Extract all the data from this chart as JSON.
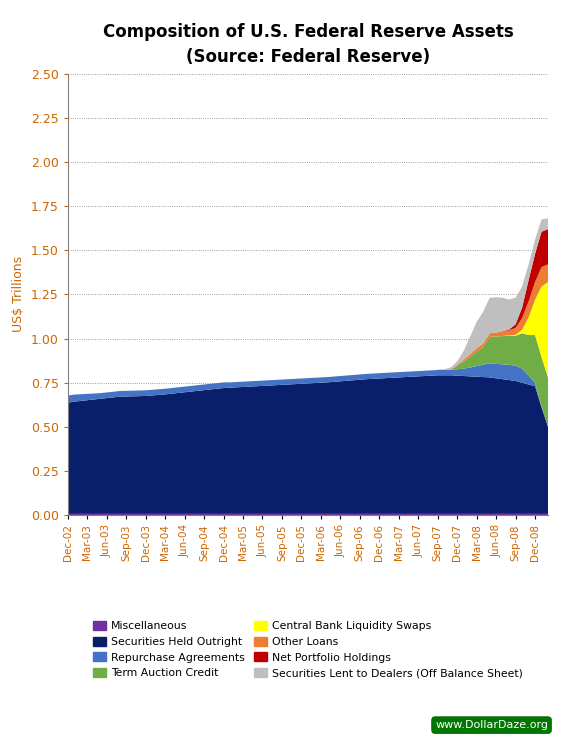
{
  "title": "Composition of U.S. Federal Reserve Assets",
  "subtitle": "(Source: Federal Reserve)",
  "ylabel": "US$ Trillions",
  "ylim": [
    0.0,
    2.5
  ],
  "yticks": [
    0.0,
    0.25,
    0.5,
    0.75,
    1.0,
    1.25,
    1.5,
    1.75,
    2.0,
    2.25,
    2.5
  ],
  "watermark": "www.DollarDaze.org",
  "figsize": [
    5.65,
    7.36
  ],
  "dpi": 100,
  "x_labels": [
    "Dec-02",
    "Mar-03",
    "Jun-03",
    "Sep-03",
    "Dec-03",
    "Mar-04",
    "Jun-04",
    "Sep-04",
    "Dec-04",
    "Mar-05",
    "Jun-05",
    "Sep-05",
    "Dec-05",
    "Mar-06",
    "Jun-06",
    "Sep-06",
    "Dec-06",
    "Mar-07",
    "Jun-07",
    "Sep-07",
    "Dec-07",
    "Mar-08",
    "Jun-08",
    "Sep-08",
    "Dec-08"
  ],
  "series": {
    "Miscellaneous": {
      "color": "#7030A0",
      "values": [
        0.01,
        0.01,
        0.01,
        0.01,
        0.01,
        0.01,
        0.01,
        0.01,
        0.01,
        0.01,
        0.01,
        0.01,
        0.01,
        0.01,
        0.01,
        0.01,
        0.01,
        0.01,
        0.01,
        0.01,
        0.01,
        0.01,
        0.01,
        0.01,
        0.01,
        0.01,
        0.01,
        0.01,
        0.01,
        0.01,
        0.01,
        0.01,
        0.01,
        0.01,
        0.01,
        0.01,
        0.01,
        0.01,
        0.01,
        0.01,
        0.01,
        0.01,
        0.01,
        0.01,
        0.01,
        0.01,
        0.01,
        0.01,
        0.01,
        0.01,
        0.01,
        0.01,
        0.01,
        0.01,
        0.01,
        0.01,
        0.01,
        0.01,
        0.01,
        0.01,
        0.01,
        0.01,
        0.01,
        0.01,
        0.01,
        0.01,
        0.01,
        0.01,
        0.01,
        0.01,
        0.01,
        0.01,
        0.01,
        0.01,
        0.01
      ]
    },
    "Securities Held Outright": {
      "color": "#0A1F6B",
      "values": [
        0.627,
        0.633,
        0.637,
        0.641,
        0.645,
        0.649,
        0.653,
        0.657,
        0.661,
        0.662,
        0.663,
        0.664,
        0.665,
        0.668,
        0.671,
        0.674,
        0.678,
        0.682,
        0.686,
        0.69,
        0.694,
        0.698,
        0.702,
        0.706,
        0.71,
        0.712,
        0.714,
        0.716,
        0.718,
        0.72,
        0.722,
        0.724,
        0.726,
        0.728,
        0.73,
        0.732,
        0.734,
        0.736,
        0.738,
        0.74,
        0.742,
        0.745,
        0.748,
        0.751,
        0.754,
        0.757,
        0.76,
        0.762,
        0.764,
        0.766,
        0.768,
        0.77,
        0.772,
        0.774,
        0.776,
        0.778,
        0.78,
        0.782,
        0.782,
        0.782,
        0.78,
        0.778,
        0.776,
        0.774,
        0.772,
        0.77,
        0.765,
        0.76,
        0.755,
        0.75,
        0.74,
        0.73,
        0.72,
        0.6,
        0.49
      ]
    },
    "Repurchase Agreements": {
      "color": "#4472C4",
      "values": [
        0.04,
        0.04,
        0.038,
        0.036,
        0.034,
        0.032,
        0.032,
        0.032,
        0.032,
        0.032,
        0.032,
        0.032,
        0.032,
        0.032,
        0.032,
        0.032,
        0.032,
        0.032,
        0.032,
        0.032,
        0.032,
        0.032,
        0.032,
        0.032,
        0.032,
        0.03,
        0.03,
        0.03,
        0.03,
        0.03,
        0.03,
        0.03,
        0.03,
        0.03,
        0.03,
        0.03,
        0.03,
        0.03,
        0.03,
        0.03,
        0.03,
        0.03,
        0.03,
        0.03,
        0.03,
        0.03,
        0.03,
        0.03,
        0.03,
        0.03,
        0.03,
        0.03,
        0.03,
        0.03,
        0.03,
        0.03,
        0.03,
        0.03,
        0.03,
        0.032,
        0.036,
        0.042,
        0.05,
        0.06,
        0.07,
        0.08,
        0.082,
        0.084,
        0.086,
        0.086,
        0.08,
        0.05,
        0.02,
        0.005,
        0.0
      ]
    },
    "Term Auction Credit": {
      "color": "#70AD47",
      "values": [
        0.0,
        0.0,
        0.0,
        0.0,
        0.0,
        0.0,
        0.0,
        0.0,
        0.0,
        0.0,
        0.0,
        0.0,
        0.0,
        0.0,
        0.0,
        0.0,
        0.0,
        0.0,
        0.0,
        0.0,
        0.0,
        0.0,
        0.0,
        0.0,
        0.0,
        0.0,
        0.0,
        0.0,
        0.0,
        0.0,
        0.0,
        0.0,
        0.0,
        0.0,
        0.0,
        0.0,
        0.0,
        0.0,
        0.0,
        0.0,
        0.0,
        0.0,
        0.0,
        0.0,
        0.0,
        0.0,
        0.0,
        0.0,
        0.0,
        0.0,
        0.0,
        0.0,
        0.0,
        0.0,
        0.0,
        0.0,
        0.0,
        0.0,
        0.0,
        0.0,
        0.02,
        0.04,
        0.06,
        0.08,
        0.1,
        0.15,
        0.155,
        0.16,
        0.165,
        0.17,
        0.2,
        0.23,
        0.27,
        0.28,
        0.28
      ]
    },
    "Central Bank Liquidity Swaps": {
      "color": "#FFFF00",
      "values": [
        0.0,
        0.0,
        0.0,
        0.0,
        0.0,
        0.0,
        0.0,
        0.0,
        0.0,
        0.0,
        0.0,
        0.0,
        0.0,
        0.0,
        0.0,
        0.0,
        0.0,
        0.0,
        0.0,
        0.0,
        0.0,
        0.0,
        0.0,
        0.0,
        0.0,
        0.0,
        0.0,
        0.0,
        0.0,
        0.0,
        0.0,
        0.0,
        0.0,
        0.0,
        0.0,
        0.0,
        0.0,
        0.0,
        0.0,
        0.0,
        0.0,
        0.0,
        0.0,
        0.0,
        0.0,
        0.0,
        0.0,
        0.0,
        0.0,
        0.0,
        0.0,
        0.0,
        0.0,
        0.0,
        0.0,
        0.0,
        0.0,
        0.0,
        0.0,
        0.0,
        0.0,
        0.0,
        0.0,
        0.0,
        0.0,
        0.0,
        0.0,
        0.001,
        0.002,
        0.005,
        0.02,
        0.1,
        0.2,
        0.4,
        0.54
      ]
    },
    "Other Loans": {
      "color": "#ED7D31",
      "values": [
        0.0,
        0.0,
        0.0,
        0.0,
        0.0,
        0.0,
        0.0,
        0.0,
        0.0,
        0.0,
        0.0,
        0.0,
        0.0,
        0.0,
        0.0,
        0.0,
        0.0,
        0.0,
        0.0,
        0.0,
        0.0,
        0.0,
        0.0,
        0.0,
        0.0,
        0.0,
        0.0,
        0.0,
        0.0,
        0.0,
        0.0,
        0.0,
        0.0,
        0.0,
        0.0,
        0.0,
        0.0,
        0.0,
        0.0,
        0.0,
        0.0,
        0.0,
        0.0,
        0.0,
        0.0,
        0.0,
        0.0,
        0.0,
        0.0,
        0.0,
        0.0,
        0.0,
        0.0,
        0.0,
        0.0,
        0.0,
        0.0,
        0.0,
        0.0,
        0.002,
        0.005,
        0.01,
        0.015,
        0.02,
        0.02,
        0.02,
        0.022,
        0.024,
        0.028,
        0.04,
        0.065,
        0.09,
        0.1,
        0.11,
        0.1
      ]
    },
    "Net Portfolio Holdings": {
      "color": "#C00000",
      "values": [
        0.0,
        0.0,
        0.0,
        0.0,
        0.0,
        0.0,
        0.0,
        0.0,
        0.0,
        0.0,
        0.0,
        0.0,
        0.0,
        0.0,
        0.0,
        0.0,
        0.0,
        0.0,
        0.0,
        0.0,
        0.0,
        0.0,
        0.0,
        0.0,
        0.0,
        0.0,
        0.0,
        0.0,
        0.0,
        0.0,
        0.0,
        0.0,
        0.0,
        0.0,
        0.0,
        0.0,
        0.0,
        0.0,
        0.0,
        0.0,
        0.0,
        0.0,
        0.0,
        0.0,
        0.0,
        0.0,
        0.0,
        0.0,
        0.0,
        0.0,
        0.0,
        0.0,
        0.0,
        0.0,
        0.0,
        0.0,
        0.0,
        0.0,
        0.0,
        0.0,
        0.0,
        0.0,
        0.0,
        0.0,
        0.0,
        0.0,
        0.0,
        0.002,
        0.005,
        0.02,
        0.06,
        0.12,
        0.16,
        0.2,
        0.2
      ]
    },
    "Securities Lent to Dealers (Off Balance Sheet)": {
      "color": "#BFBFBF",
      "values": [
        0.0,
        0.0,
        0.0,
        0.0,
        0.0,
        0.0,
        0.0,
        0.0,
        0.0,
        0.0,
        0.0,
        0.0,
        0.0,
        0.0,
        0.0,
        0.0,
        0.0,
        0.0,
        0.0,
        0.0,
        0.0,
        0.0,
        0.0,
        0.0,
        0.0,
        0.0,
        0.0,
        0.0,
        0.0,
        0.0,
        0.0,
        0.0,
        0.0,
        0.0,
        0.0,
        0.0,
        0.0,
        0.0,
        0.0,
        0.0,
        0.0,
        0.0,
        0.0,
        0.0,
        0.0,
        0.0,
        0.0,
        0.0,
        0.0,
        0.0,
        0.0,
        0.0,
        0.0,
        0.0,
        0.0,
        0.0,
        0.0,
        0.002,
        0.005,
        0.01,
        0.02,
        0.05,
        0.1,
        0.15,
        0.18,
        0.2,
        0.2,
        0.19,
        0.17,
        0.15,
        0.12,
        0.09,
        0.08,
        0.07,
        0.06
      ]
    }
  },
  "stack_order": [
    "Miscellaneous",
    "Securities Held Outright",
    "Repurchase Agreements",
    "Term Auction Credit",
    "Central Bank Liquidity Swaps",
    "Other Loans",
    "Net Portfolio Holdings",
    "Securities Lent to Dealers (Off Balance Sheet)"
  ],
  "legend_order": [
    "Miscellaneous",
    "Securities Held Outright",
    "Repurchase Agreements",
    "Term Auction Credit",
    "Central Bank Liquidity Swaps",
    "Other Loans",
    "Net Portfolio Holdings",
    "Securities Lent to Dealers (Off Balance Sheet)"
  ],
  "n_months": 75,
  "tick_positions": [
    0,
    3,
    6,
    9,
    12,
    15,
    18,
    21,
    24,
    27,
    30,
    33,
    36,
    39,
    42,
    45,
    48,
    51,
    54,
    57,
    60,
    63,
    66,
    69,
    72
  ]
}
